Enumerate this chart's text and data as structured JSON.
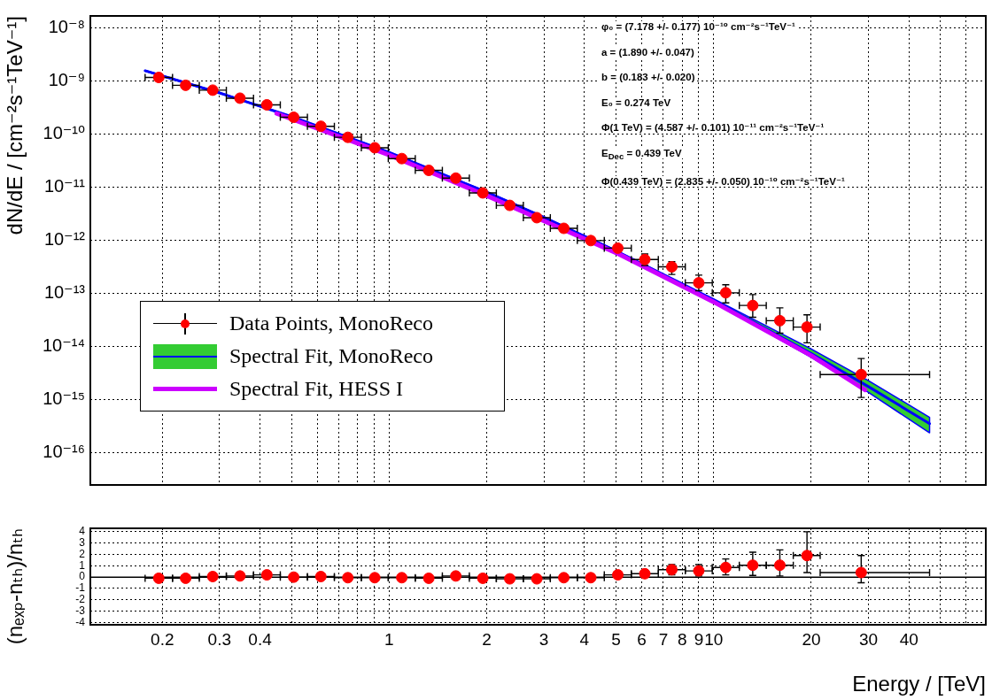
{
  "chart_data": [
    {
      "type": "scatter",
      "ylabel": "dN/dE / [cm⁻²s⁻¹TeV⁻¹]",
      "log": "xy",
      "grid": true,
      "legend": "bottom left",
      "tick_labels": "y",
      "xlim": [
        0.12,
        69
      ],
      "ylim": [
        2.5e-17,
        1.7e-08
      ],
      "xticks": [
        0.2,
        0.3,
        0.4,
        {
          "value": 0.5,
          "label": null
        },
        {
          "value": 0.6,
          "label": null
        },
        {
          "value": 0.7,
          "label": null
        },
        {
          "value": 0.8,
          "label": null
        },
        {
          "value": 0.9,
          "label": null
        },
        1,
        2,
        3,
        4,
        5,
        6,
        7,
        8,
        9,
        10,
        20,
        30,
        40,
        {
          "value": 50,
          "label": null
        },
        {
          "value": 60,
          "label": null
        }
      ],
      "yticks": [
        {
          "value": 1e-16,
          "label": "10⁻¹⁶"
        },
        {
          "value": 1e-15,
          "label": "10⁻¹⁵"
        },
        {
          "value": 1e-14,
          "label": "10⁻¹⁴"
        },
        {
          "value": 1e-13,
          "label": "10⁻¹³"
        },
        {
          "value": 1e-12,
          "label": "10⁻¹²"
        },
        {
          "value": 1e-11,
          "label": "10⁻¹¹"
        },
        {
          "value": 1e-10,
          "label": "10⁻¹⁰"
        },
        {
          "value": 1e-09,
          "label": "10⁻⁹"
        },
        {
          "value": 1e-08,
          "label": "10⁻⁸"
        }
      ],
      "annotations": [
        "φ₀ = (7.178 +/- 0.177) 10⁻¹⁰ cm⁻²s⁻¹TeV⁻¹",
        "a = (1.890 +/- 0.047)",
        "b = (0.183 +/- 0.020)",
        "E₀ = 0.274 TeV",
        "Φ(1 TeV) = (4.587 +/- 0.101) 10⁻¹¹ cm⁻²s⁻¹TeV⁻¹",
        "E$_{Dec}$ = 0.439 TeV",
        "Φ(0.439 TeV) = (2.835 +/- 0.050) 10⁻¹⁰ cm⁻²s⁻¹TeV⁻¹"
      ],
      "series": [
        {
          "name": "Data Points, MonoReco",
          "type": "scatter",
          "marker": "circle",
          "color": "#ff0000",
          "x": [
            0.195,
            0.236,
            0.286,
            0.347,
            0.42,
            0.508,
            0.616,
            0.746,
            0.903,
            1.094,
            1.325,
            1.605,
            1.944,
            2.354,
            2.852,
            3.454,
            4.183,
            5.067,
            6.137,
            7.432,
            9.0,
            10.9,
            13.2,
            16.0,
            19.4,
            28.5
          ],
          "values": [
            1.18e-09,
            8.4e-10,
            6.8e-10,
            4.8e-10,
            3.6e-10,
            2.1e-10,
            1.42e-10,
            8.8e-11,
            5.6e-11,
            3.5e-11,
            2.1e-11,
            1.5e-11,
            7.9e-12,
            4.6e-12,
            2.7e-12,
            1.7e-12,
            1e-12,
            7.2e-13,
            4.4e-13,
            3.2e-13,
            1.6e-13,
            1.04e-13,
            6e-14,
            3.1e-14,
            2.35e-14,
            3e-15
          ],
          "errors": [
            null,
            null,
            null,
            null,
            null,
            null,
            null,
            null,
            null,
            null,
            null,
            null,
            null,
            null,
            null,
            null,
            null,
            null,
            [
              3.4e-13,
              5.6e-13
            ],
            [
              2.3e-13,
              4e-13
            ],
            [
              1.14e-13,
              2.24e-13
            ],
            [
              6.7e-14,
              1.47e-13
            ],
            [
              3.6e-14,
              9.6e-14
            ],
            [
              1.8e-14,
              5.4e-14
            ],
            [
              1.19e-14,
              4e-14
            ],
            [
              1.11e-15,
              6e-15
            ]
          ],
          "xerrors": [
            [
              0.177,
              0.215
            ],
            [
              0.215,
              0.26
            ],
            [
              0.26,
              0.315
            ],
            [
              0.315,
              0.382
            ],
            [
              0.382,
              0.462
            ],
            [
              0.462,
              0.56
            ],
            [
              0.56,
              0.678
            ],
            [
              0.678,
              0.821
            ],
            [
              0.821,
              0.994
            ],
            [
              0.994,
              1.204
            ],
            [
              1.204,
              1.459
            ],
            [
              1.459,
              1.767
            ],
            [
              1.767,
              2.14
            ],
            [
              2.14,
              2.592
            ],
            [
              2.592,
              3.139
            ],
            [
              3.139,
              3.802
            ],
            [
              3.802,
              4.604
            ],
            [
              4.604,
              5.577
            ],
            [
              5.577,
              6.754
            ],
            [
              6.754,
              8.18
            ],
            [
              8.18,
              9.906
            ],
            [
              9.906,
              12.0
            ],
            [
              12.0,
              14.53
            ],
            [
              14.53,
              17.6
            ],
            [
              17.6,
              21.3
            ],
            [
              21.3,
              46.3
            ]
          ]
        },
        {
          "name": "Spectral Fit, MonoReco",
          "type": "line",
          "color": "#0000ff",
          "x": [
            0.177,
            0.3,
            0.5,
            1,
            2,
            3,
            5,
            10,
            20,
            30,
            46.3
          ],
          "values": [
            1.58e-09,
            6.04e-10,
            2.16e-10,
            4.57e-11,
            8.13e-12,
            2.73e-12,
            6.34e-13,
            7.5e-14,
            7.46e-15,
            1.78e-15,
            3.57e-16
          ],
          "lower": [
            1.55e-09,
            5.95e-10,
            2.13e-10,
            4.5e-11,
            7.95e-12,
            2.65e-12,
            6.1e-13,
            7e-14,
            6.3e-15,
            1.38e-15,
            2.4e-16
          ],
          "upper": [
            1.61e-09,
            6.13e-10,
            2.19e-10,
            4.65e-11,
            8.3e-12,
            2.8e-12,
            6.6e-13,
            8e-14,
            9.1e-15,
            2.3e-15,
            4.7e-16
          ]
        },
        {
          "name": "Spectral Fit, HESS I",
          "type": "line",
          "color": "#cc00ff",
          "x": [
            0.45,
            1,
            2,
            5,
            10,
            20,
            29.3
          ],
          "values": [
            2.47e-10,
            4.1e-11,
            7e-12,
            5.9e-13,
            7e-14,
            6.8e-15,
            1.54e-15
          ]
        }
      ]
    },
    {
      "type": "scatter",
      "xlabel": "Energy / [TeV]",
      "ylabel": "(nₑₓₚ-nₜₕ)/nₜₕ",
      "log": "x",
      "grid": true,
      "xlim": [
        0.12,
        69
      ],
      "ylim": [
        -4.2,
        4.3
      ],
      "xticks": [
        0.2,
        0.3,
        0.4,
        {
          "value": 0.5,
          "label": null
        },
        {
          "value": 0.6,
          "label": null
        },
        {
          "value": 0.7,
          "label": null
        },
        {
          "value": 0.8,
          "label": null
        },
        {
          "value": 0.9,
          "label": null
        },
        1,
        2,
        3,
        4,
        5,
        6,
        7,
        8,
        9,
        10,
        20,
        30,
        40,
        {
          "value": 50,
          "label": null
        },
        {
          "value": 60,
          "label": null
        }
      ],
      "yticks": [
        -4,
        -3,
        -2,
        -1,
        0,
        1,
        2,
        3,
        4
      ],
      "ref_lines": [
        {
          "axis": "y",
          "value": 0,
          "color": "#000000"
        }
      ],
      "series": [
        {
          "marker": "circle",
          "color": "#ff0000",
          "x": [
            0.195,
            0.236,
            0.286,
            0.347,
            0.42,
            0.508,
            0.616,
            0.746,
            0.903,
            1.094,
            1.325,
            1.605,
            1.944,
            2.354,
            2.852,
            3.454,
            4.183,
            5.067,
            6.137,
            7.432,
            9.0,
            10.9,
            13.2,
            16.0,
            19.4,
            28.5
          ],
          "values": [
            -0.1,
            -0.1,
            0.05,
            0.1,
            0.2,
            0,
            0.05,
            -0.05,
            -0.05,
            -0.05,
            -0.1,
            0.1,
            -0.1,
            -0.15,
            -0.15,
            -0.05,
            -0.05,
            0.2,
            0.3,
            0.65,
            0.55,
            0.85,
            1.05,
            1.05,
            1.9,
            0.4
          ],
          "errors": [
            null,
            null,
            null,
            null,
            null,
            null,
            null,
            null,
            null,
            null,
            null,
            null,
            null,
            null,
            null,
            null,
            null,
            null,
            null,
            [
              0.2,
              1.1
            ],
            [
              0.1,
              1.1
            ],
            [
              0.2,
              1.6
            ],
            [
              0.15,
              2.2
            ],
            [
              0.1,
              2.4
            ],
            [
              0.4,
              4.0
            ],
            [
              -0.5,
              1.9
            ]
          ],
          "xerrors": [
            [
              0.177,
              0.215
            ],
            [
              0.215,
              0.26
            ],
            [
              0.26,
              0.315
            ],
            [
              0.315,
              0.382
            ],
            [
              0.382,
              0.462
            ],
            [
              0.462,
              0.56
            ],
            [
              0.56,
              0.678
            ],
            [
              0.678,
              0.821
            ],
            [
              0.821,
              0.994
            ],
            [
              0.994,
              1.204
            ],
            [
              1.204,
              1.459
            ],
            [
              1.459,
              1.767
            ],
            [
              1.767,
              2.14
            ],
            [
              2.14,
              2.592
            ],
            [
              2.592,
              3.139
            ],
            [
              3.139,
              3.802
            ],
            [
              3.802,
              4.604
            ],
            [
              4.604,
              5.577
            ],
            [
              5.577,
              6.754
            ],
            [
              6.754,
              8.18
            ],
            [
              8.18,
              9.906
            ],
            [
              9.906,
              12.0
            ],
            [
              12.0,
              14.53
            ],
            [
              14.53,
              17.6
            ],
            [
              17.6,
              21.3
            ],
            [
              21.3,
              46.3
            ]
          ]
        }
      ]
    }
  ]
}
